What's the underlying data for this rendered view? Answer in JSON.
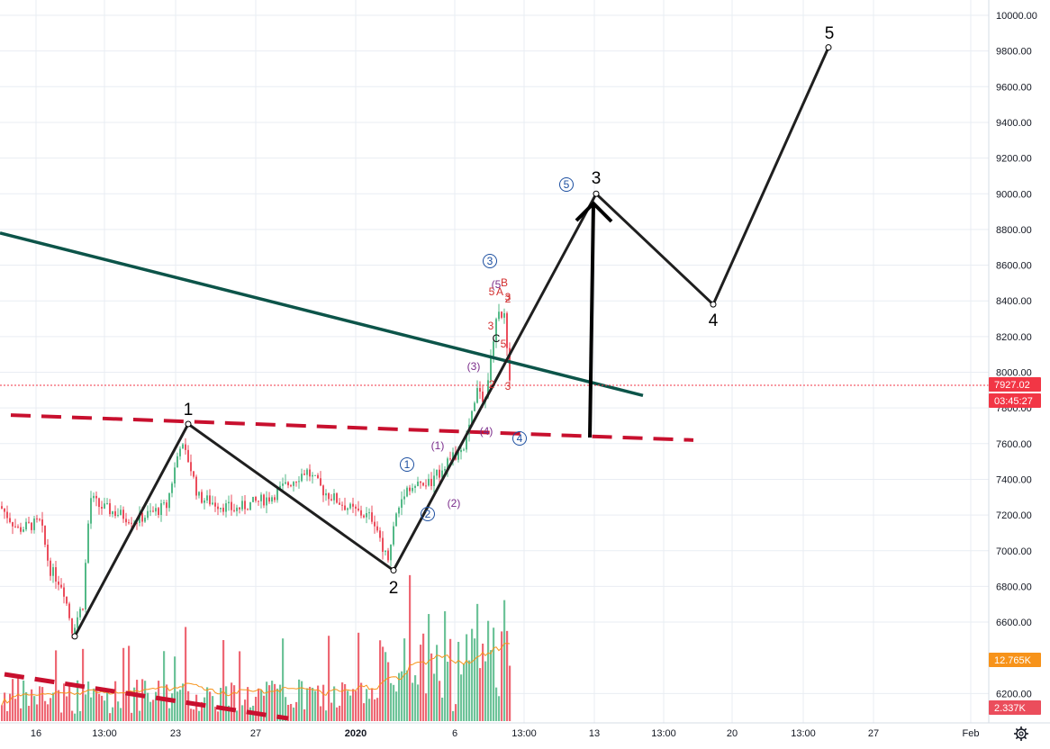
{
  "colors": {
    "up": "#53b987",
    "down": "#eb4d5c",
    "grid": "#e9edf3",
    "wave_line": "#1f1f1f",
    "trendline": "#0c5449",
    "dashed_support": "#c8102e",
    "current_price": "#f23645",
    "volume_badge": "#f7931a",
    "circle_label": "#1c4fa0",
    "paren_label": "#7b2d8b",
    "red_label": "#d32f2f"
  },
  "price_axis": {
    "labels": [
      "10000.00",
      "9800.00",
      "9600.00",
      "9400.00",
      "9200.00",
      "9000.00",
      "8800.00",
      "8600.00",
      "8400.00",
      "8200.00",
      "8000.00",
      "7800.00",
      "7600.00",
      "7400.00",
      "7200.00",
      "7000.00",
      "6800.00",
      "6600.00",
      "6200.00"
    ],
    "current_price": "7927.02",
    "countdown": "03:45:27",
    "volume_ma": "12.765K",
    "volume_current": "2.337K"
  },
  "time_axis": {
    "labels": [
      "16",
      "13:00",
      "23",
      "27",
      "2020",
      "6",
      "13:00",
      "13",
      "13:00",
      "20",
      "13:00",
      "27",
      "Feb"
    ]
  },
  "chart_data": {
    "type": "candlestick",
    "ylim": [
      6120,
      10060
    ],
    "elliott_wave_main": [
      {
        "label": "",
        "price": 6520
      },
      {
        "label": "1",
        "price": 7710
      },
      {
        "label": "2",
        "price": 6890
      },
      {
        "label": "3",
        "price": 9000
      },
      {
        "label": "4",
        "price": 8380
      },
      {
        "label": "5",
        "price": 9820
      }
    ],
    "circle_labels": [
      "1",
      "2",
      "3",
      "4",
      "5"
    ],
    "paren_labels": [
      "(1)",
      "(2)",
      "(3)",
      "(4)",
      "(5"
    ],
    "red_labels": [
      "2",
      "3",
      "3",
      "5",
      "C",
      "A",
      "B",
      "5",
      "3",
      "2"
    ],
    "trendline": {
      "from_price": 8780,
      "to_price": 7870
    },
    "support_dashed": {
      "from_price": 7760,
      "to_price": 7620
    },
    "volume_trend_dashed": true,
    "up_color": "#53b987",
    "down_color": "#eb4d5c"
  }
}
